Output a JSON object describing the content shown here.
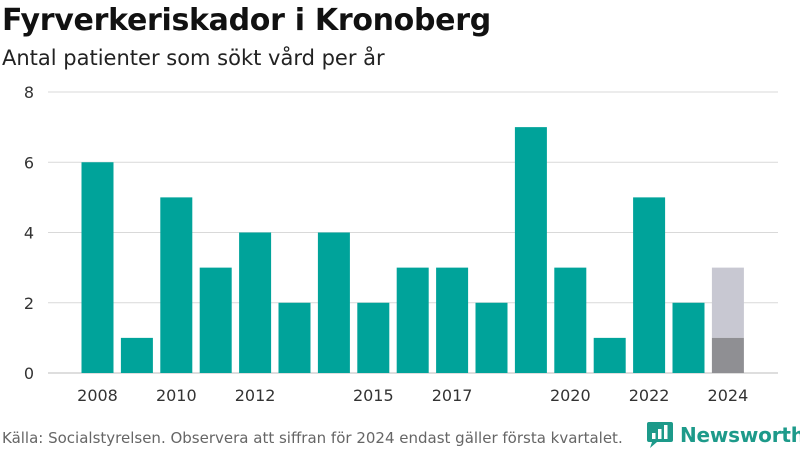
{
  "title": "Fyrverkeriskador i Kronoberg",
  "subtitle": "Antal patienter som sökt vård per år",
  "source": "Källa: Socialstyrelsen. Observera att siffran för 2024 endast gäller första kvartalet.",
  "brand": {
    "name": "Newsworthy",
    "icon": "newsworthy-logo-icon"
  },
  "colors": {
    "bar": "#00a39a",
    "bar_2024_quarter": "#8f8f93",
    "bar_2024_rest": "#c8c8d2",
    "grid": "#d9d9d9",
    "brand": "#1d9a8a"
  },
  "chart_data": {
    "type": "bar",
    "categories": [
      "2008",
      "2009",
      "2010",
      "2011",
      "2012",
      "2013",
      "2014",
      "2015",
      "2016",
      "2017",
      "2018",
      "2019",
      "2020",
      "2021",
      "2022",
      "2023",
      "2024"
    ],
    "values": [
      6,
      1,
      5,
      3,
      4,
      2,
      4,
      2,
      3,
      3,
      2,
      7,
      3,
      1,
      5,
      2,
      1
    ],
    "highlight": {
      "category": "2024",
      "value": 1,
      "total": 3
    },
    "x_tick_labels": [
      {
        "category": "2008",
        "label": "2008"
      },
      {
        "category": "2010",
        "label": "2010"
      },
      {
        "category": "2012",
        "label": "2012"
      },
      {
        "category": "2015",
        "label": "2015"
      },
      {
        "category": "2017",
        "label": "2017"
      },
      {
        "category": "2020",
        "label": "2020"
      },
      {
        "category": "2022",
        "label": "2022"
      },
      {
        "category": "2024",
        "label": "2024"
      }
    ],
    "y_ticks": [
      0,
      2,
      4,
      6,
      8
    ],
    "ylim": [
      0,
      8
    ],
    "xlabel": "",
    "ylabel": "",
    "grid": true
  }
}
